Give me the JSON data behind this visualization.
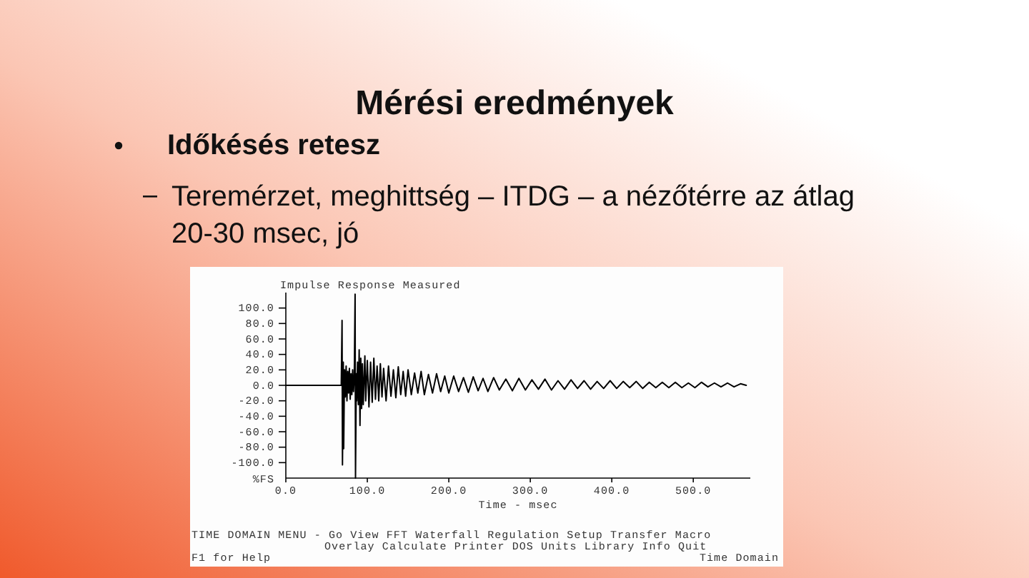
{
  "chart_data": {
    "type": "line",
    "title": "Mérési eredmények",
    "subtitle": "Időkésés retesz",
    "annotations": [
      "Teremérzet, meghittség – ITDG – a nézőtérre az átlag 20-30 msec, jó",
      "Impulse Response Measured",
      "TIME DOMAIN MENU - Go View FFT Waterfall Regulation Setup Transfer Macro",
      "Overlay Calculate Printer DOS Units Library Info Quit",
      "F1 for Help",
      "Time Domain"
    ],
    "xlabel": "Time - msec",
    "ylabel": "%FS",
    "color": "#000000",
    "x": [
      0,
      68,
      69,
      69.5,
      70.5,
      71,
      72,
      73,
      74,
      75,
      76,
      77,
      78,
      79,
      80,
      81,
      82,
      83,
      84,
      85,
      85.5,
      86.5,
      87,
      88,
      89,
      90,
      91,
      92,
      93,
      94,
      95,
      97,
      98,
      100,
      102,
      104,
      106,
      108,
      110,
      112,
      114,
      116,
      118,
      120,
      123,
      126,
      129,
      132,
      135,
      138,
      141,
      144,
      147,
      150,
      154,
      158,
      162,
      166,
      170,
      175,
      180,
      185,
      190,
      195,
      200,
      206,
      212,
      218,
      224,
      230,
      236,
      242,
      248,
      255,
      262,
      270,
      278,
      286,
      294,
      302,
      310,
      318,
      326,
      334,
      342,
      350,
      358,
      366,
      374,
      382,
      390,
      398,
      406,
      414,
      422,
      430,
      438,
      446,
      454,
      462,
      470,
      478,
      486,
      494,
      502,
      510,
      518,
      526,
      534,
      542,
      550,
      558,
      565
    ],
    "values": [
      0,
      0,
      84,
      -103,
      30,
      -82,
      20,
      -15,
      25,
      -20,
      18,
      -10,
      22,
      -18,
      15,
      -12,
      20,
      -8,
      10,
      118,
      -120,
      15,
      -20,
      30,
      -25,
      46,
      -52,
      35,
      -30,
      28,
      -25,
      38,
      -20,
      32,
      -28,
      30,
      -22,
      35,
      -18,
      25,
      -20,
      28,
      -15,
      22,
      -20,
      25,
      -14,
      20,
      -16,
      24,
      -12,
      18,
      -14,
      20,
      -12,
      16,
      -10,
      18,
      -12,
      14,
      -10,
      15,
      -8,
      12,
      -10,
      12,
      -8,
      10,
      -9,
      11,
      -7,
      9,
      -8,
      10,
      -6,
      8,
      -7,
      9,
      -6,
      7,
      -5,
      8,
      -6,
      6,
      -5,
      7,
      -4,
      6,
      -5,
      5,
      -4,
      6,
      -4,
      5,
      -3,
      5,
      -4,
      4,
      -3,
      4,
      -3,
      4,
      -3,
      3,
      -3,
      4,
      -2,
      3,
      -2,
      3,
      -2,
      2,
      0
    ],
    "xlim": [
      0,
      570
    ],
    "xticks": [
      {
        "value": 0,
        "label": "0.0"
      },
      {
        "value": 100,
        "label": "100.0"
      },
      {
        "value": 200,
        "label": "200.0"
      },
      {
        "value": 300,
        "label": "300.0"
      },
      {
        "value": 400,
        "label": "400.0"
      },
      {
        "value": 500,
        "label": "500.0"
      }
    ],
    "ylim": [
      -120,
      120
    ],
    "yticks": [
      {
        "value": 100,
        "label": "100.0"
      },
      {
        "value": 80,
        "label": "80.0"
      },
      {
        "value": 60,
        "label": "60.0"
      },
      {
        "value": 40,
        "label": "40.0"
      },
      {
        "value": 20,
        "label": "20.0"
      },
      {
        "value": 0,
        "label": "0.0"
      },
      {
        "value": -20,
        "label": "-20.0"
      },
      {
        "value": -40,
        "label": "-40.0"
      },
      {
        "value": -60,
        "label": "-60.0"
      },
      {
        "value": -80,
        "label": "-80.0"
      },
      {
        "value": -100,
        "label": "-100.0"
      }
    ]
  }
}
